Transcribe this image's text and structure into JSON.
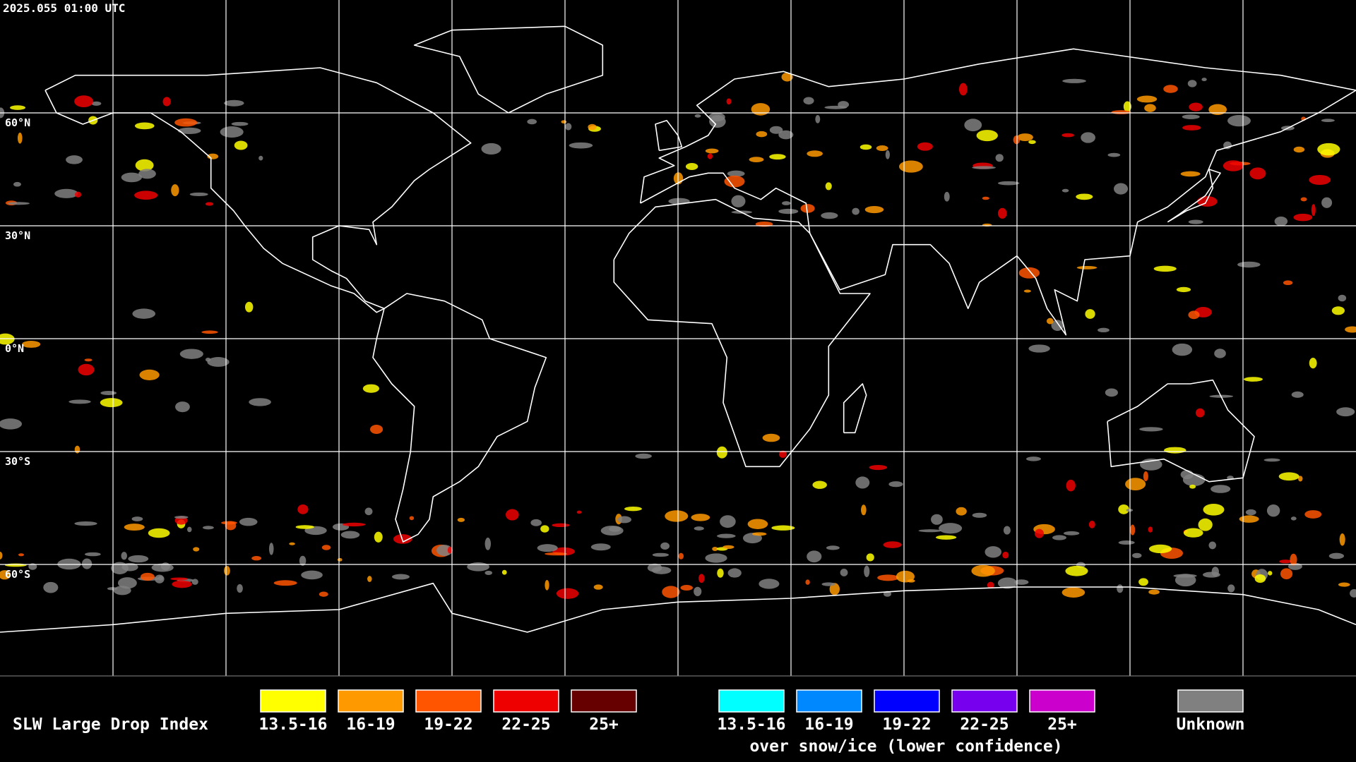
{
  "header": {
    "timestamp": "2025.055 01:00 UTC"
  },
  "map": {
    "lat_labels": [
      "60°N",
      "30°N",
      "0°N",
      "30°S",
      "60°S"
    ]
  },
  "legend": {
    "title": "SLW Large Drop Index",
    "groups": [
      {
        "items": [
          {
            "label": "13.5-16",
            "color": "#ffff00"
          },
          {
            "label": "16-19",
            "color": "#ff9900"
          },
          {
            "label": "19-22",
            "color": "#ff5500"
          },
          {
            "label": "22-25",
            "color": "#ee0000"
          },
          {
            "label": "25+",
            "color": "#660000"
          }
        ]
      },
      {
        "items": [
          {
            "label": "13.5-16",
            "color": "#00ffff"
          },
          {
            "label": "16-19",
            "color": "#0088ff"
          },
          {
            "label": "19-22",
            "color": "#0000ff"
          },
          {
            "label": "22-25",
            "color": "#7700ee"
          },
          {
            "label": "25+",
            "color": "#cc00cc"
          }
        ],
        "caption": "over snow/ice (lower confidence)"
      }
    ],
    "unknown": {
      "label": "Unknown",
      "color": "#808080"
    }
  }
}
